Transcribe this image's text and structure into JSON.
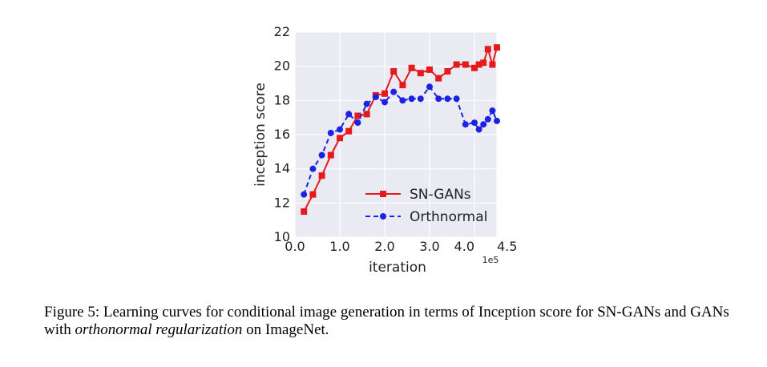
{
  "chart_data": {
    "type": "line",
    "xlabel": "iteration",
    "ylabel": "inception score",
    "x_scale_note": "1e5",
    "xlim": [
      0,
      4.5
    ],
    "ylim": [
      10,
      22
    ],
    "x_ticks": [
      0.0,
      1.0,
      2.0,
      3.0,
      4.0,
      4.5
    ],
    "x_tick_labels": [
      "0.0",
      "1.0",
      "2.0",
      "3.0",
      "4.0",
      "4.5"
    ],
    "y_ticks": [
      10,
      12,
      14,
      16,
      18,
      20,
      22
    ],
    "y_tick_labels": [
      "10",
      "12",
      "14",
      "16",
      "18",
      "20",
      "22"
    ],
    "grid": true,
    "legend_position": "lower-right",
    "series": [
      {
        "name": "SN-GANs",
        "color": "#e41a1c",
        "line_style": "solid",
        "marker": "square",
        "x": [
          0.2,
          0.4,
          0.6,
          0.8,
          1.0,
          1.2,
          1.4,
          1.6,
          1.8,
          2.0,
          2.2,
          2.4,
          2.6,
          2.8,
          3.0,
          3.2,
          3.4,
          3.6,
          3.8,
          4.0,
          4.1,
          4.2,
          4.3,
          4.4,
          4.5
        ],
        "values": [
          11.5,
          12.5,
          13.6,
          14.8,
          15.8,
          16.2,
          17.1,
          17.2,
          18.3,
          18.4,
          19.7,
          18.9,
          19.9,
          19.6,
          19.8,
          19.3,
          19.7,
          20.1,
          20.1,
          19.9,
          20.1,
          20.2,
          21.0,
          20.1,
          21.1
        ]
      },
      {
        "name": "Orthnormal",
        "color": "#1a22e4",
        "line_style": "dashed",
        "marker": "circle",
        "x": [
          0.2,
          0.4,
          0.6,
          0.8,
          1.0,
          1.2,
          1.4,
          1.6,
          1.8,
          2.0,
          2.2,
          2.4,
          2.6,
          2.8,
          3.0,
          3.2,
          3.4,
          3.6,
          3.8,
          4.0,
          4.1,
          4.2,
          4.3,
          4.4,
          4.5
        ],
        "values": [
          12.5,
          14.0,
          14.8,
          16.1,
          16.3,
          17.2,
          16.7,
          17.8,
          18.2,
          17.9,
          18.5,
          18.0,
          18.1,
          18.1,
          18.8,
          18.1,
          18.1,
          18.1,
          16.6,
          16.7,
          16.3,
          16.6,
          16.9,
          17.4,
          16.8
        ]
      }
    ]
  },
  "caption": {
    "prefix": "Figure 5:  Learning curves for conditional image generation in terms of Inception score for SN-GANs and GANs with ",
    "italic": "orthonormal regularization",
    "suffix": " on ImageNet."
  }
}
